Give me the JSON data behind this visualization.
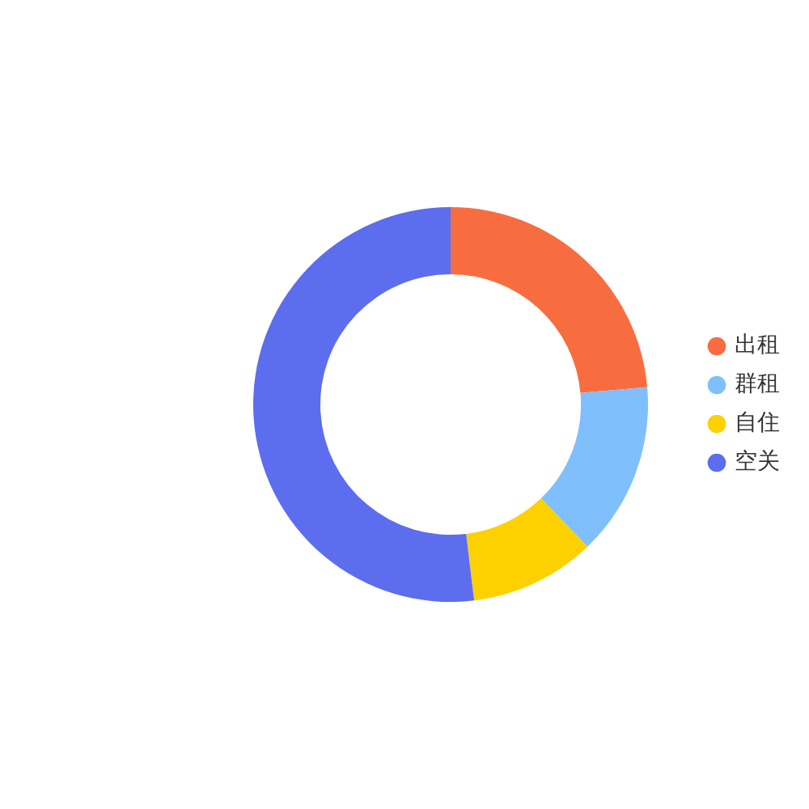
{
  "chart_data": {
    "type": "donut",
    "categories": [
      "出租",
      "群租",
      "自住",
      "空关"
    ],
    "values": [
      23.6,
      14.2,
      10.3,
      51.9
    ],
    "colors": [
      "#f76d40",
      "#7fbffc",
      "#fdd000",
      "#5c6dee"
    ],
    "legend": "right"
  }
}
